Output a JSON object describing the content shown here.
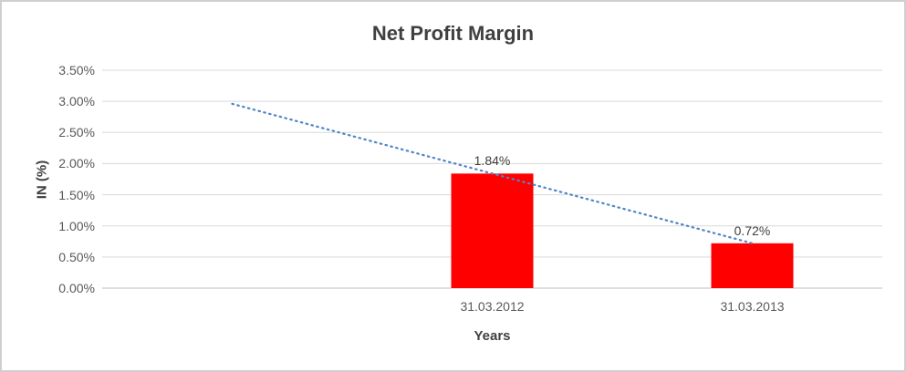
{
  "chart_data": {
    "type": "bar",
    "title": "Net Profit Margin",
    "xlabel": "Years",
    "ylabel": "IN (%)",
    "categories": [
      "31.03.2012",
      "31.03.2013"
    ],
    "values": [
      1.84,
      0.72
    ],
    "data_labels": [
      "1.84%",
      "0.72%"
    ],
    "ylim": [
      0,
      3.5
    ],
    "ytick_step": 0.5,
    "ytick_labels": [
      "0.00%",
      "0.50%",
      "1.00%",
      "1.50%",
      "2.00%",
      "2.50%",
      "3.00%",
      "3.50%"
    ],
    "bar_color": "#ff0000",
    "grid": true,
    "legend_position": "none",
    "trendline": {
      "style": "dotted",
      "color": "#4e86c6",
      "start_value": 2.96,
      "end_value": 0.72
    },
    "layout": {
      "slot_count": 3,
      "bar_slots": [
        1,
        2
      ],
      "trendline_start_slot": 0,
      "trendline_end_slot": 2
    }
  }
}
